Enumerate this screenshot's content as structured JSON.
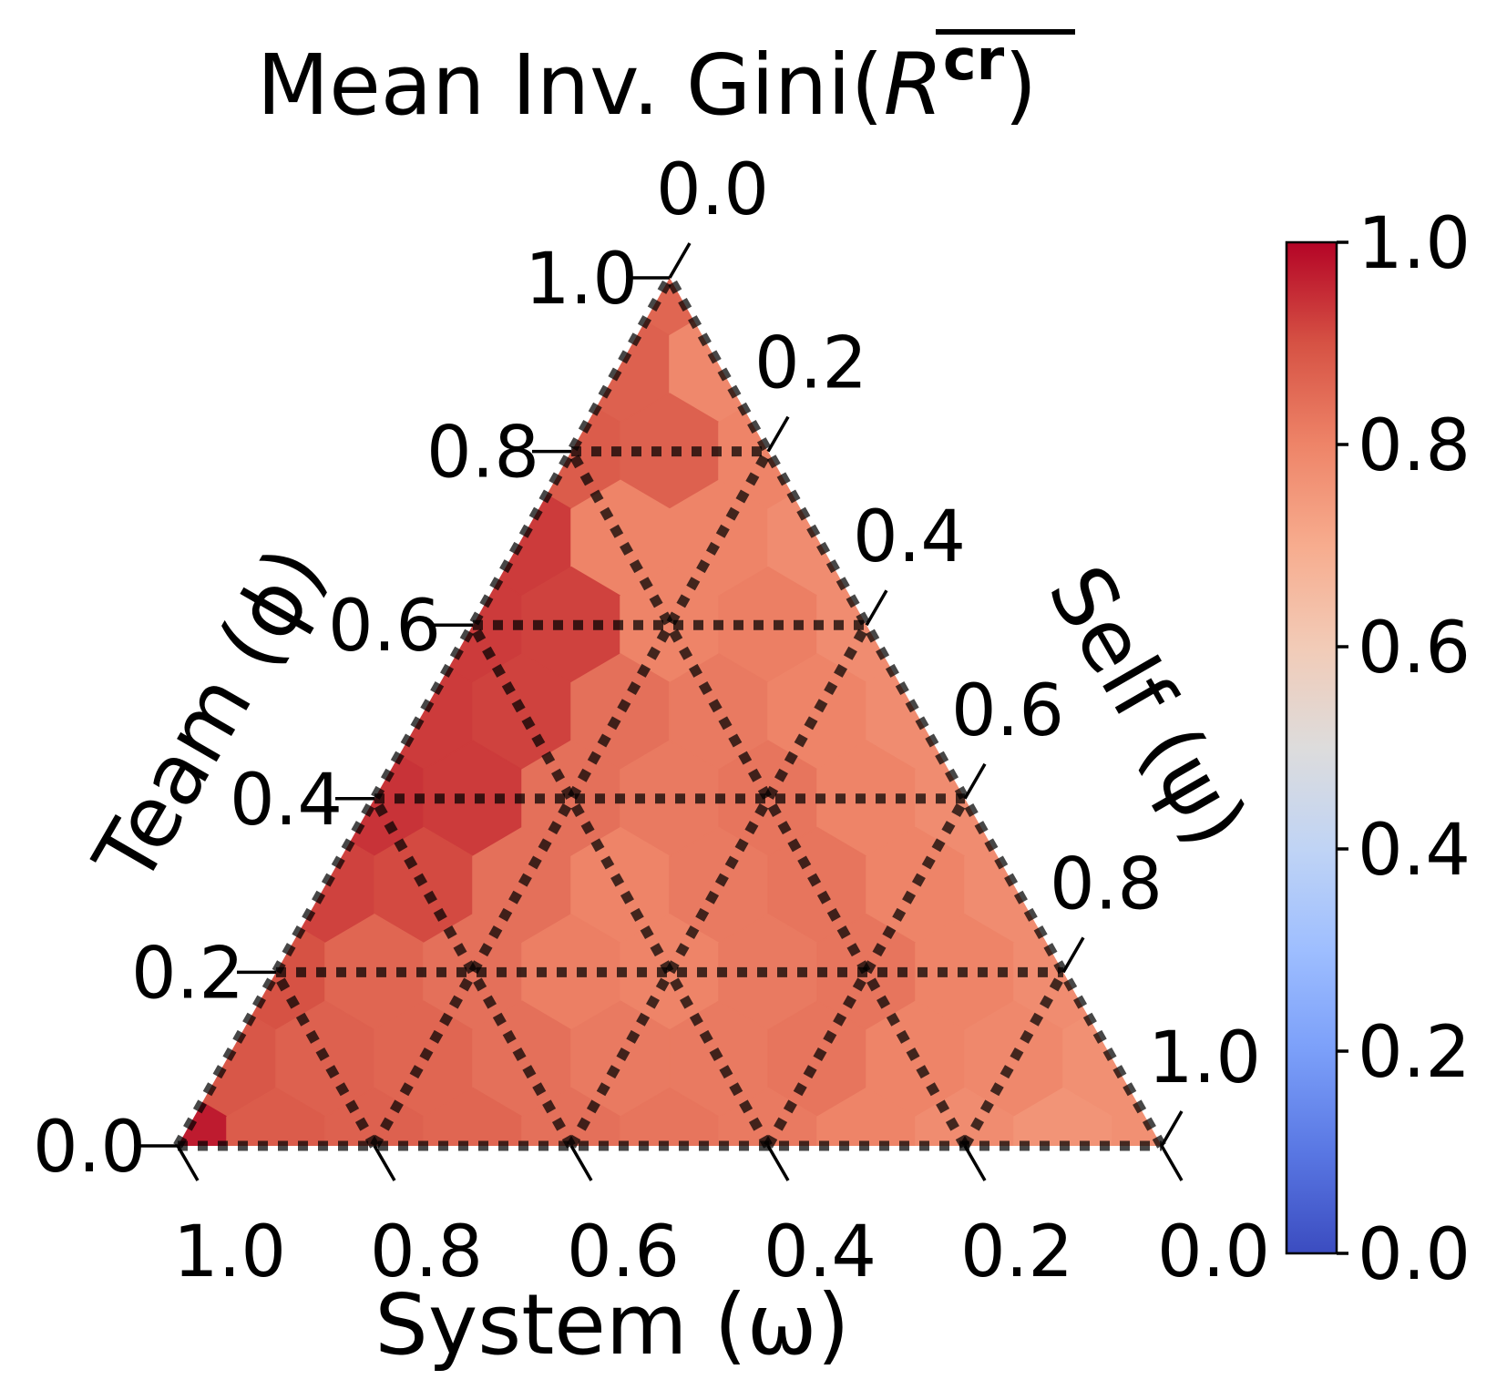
{
  "chart_data": {
    "type": "heatmap",
    "subtype": "ternary",
    "title": {
      "prefix": "Mean Inv. Gini(",
      "symbol": "R",
      "superscript": "cr",
      "overline": true,
      "suffix": ")"
    },
    "axes": {
      "bottom": {
        "label": "System (ω)",
        "ticks": [
          "1.0",
          "0.8",
          "0.6",
          "0.4",
          "0.2",
          "0.0"
        ]
      },
      "left": {
        "label": "Team (ϕ)",
        "ticks": [
          "0.0",
          "0.2",
          "0.4",
          "0.6",
          "0.8",
          "1.0"
        ]
      },
      "right": {
        "label": "Self (ψ)",
        "ticks": [
          "0.0",
          "0.2",
          "0.4",
          "0.6",
          "0.8",
          "1.0"
        ]
      }
    },
    "grid": "dotted",
    "grid_step": 0.2,
    "resolution": 0.1,
    "colormap": "coolwarm",
    "colorbar": {
      "range": [
        0,
        1
      ],
      "ticks": [
        "0.0",
        "0.2",
        "0.4",
        "0.6",
        "0.8",
        "1.0"
      ],
      "position": "right"
    },
    "columns": [
      "team",
      "self",
      "system",
      "value"
    ],
    "cells": [
      [
        1.0,
        0.0,
        0.0,
        0.86
      ],
      [
        0.9,
        0.0,
        0.1,
        0.87
      ],
      [
        0.9,
        0.1,
        0.0,
        0.79
      ],
      [
        0.8,
        0.0,
        0.2,
        0.88
      ],
      [
        0.8,
        0.1,
        0.1,
        0.87
      ],
      [
        0.8,
        0.2,
        0.0,
        0.8
      ],
      [
        0.7,
        0.0,
        0.3,
        0.93
      ],
      [
        0.7,
        0.1,
        0.2,
        0.8
      ],
      [
        0.7,
        0.2,
        0.1,
        0.8
      ],
      [
        0.7,
        0.3,
        0.0,
        0.78
      ],
      [
        0.6,
        0.0,
        0.4,
        0.93
      ],
      [
        0.6,
        0.1,
        0.3,
        0.92
      ],
      [
        0.6,
        0.2,
        0.2,
        0.8
      ],
      [
        0.6,
        0.3,
        0.1,
        0.81
      ],
      [
        0.6,
        0.4,
        0.0,
        0.78
      ],
      [
        0.5,
        0.0,
        0.5,
        0.93
      ],
      [
        0.5,
        0.1,
        0.4,
        0.92
      ],
      [
        0.5,
        0.2,
        0.3,
        0.84
      ],
      [
        0.5,
        0.3,
        0.2,
        0.82
      ],
      [
        0.5,
        0.4,
        0.1,
        0.8
      ],
      [
        0.5,
        0.5,
        0.0,
        0.78
      ],
      [
        0.4,
        0.0,
        0.6,
        0.94
      ],
      [
        0.4,
        0.1,
        0.5,
        0.93
      ],
      [
        0.4,
        0.2,
        0.4,
        0.84
      ],
      [
        0.4,
        0.3,
        0.3,
        0.82
      ],
      [
        0.4,
        0.4,
        0.2,
        0.83
      ],
      [
        0.4,
        0.5,
        0.1,
        0.8
      ],
      [
        0.4,
        0.6,
        0.0,
        0.78
      ],
      [
        0.3,
        0.0,
        0.7,
        0.92
      ],
      [
        0.3,
        0.1,
        0.6,
        0.91
      ],
      [
        0.3,
        0.2,
        0.5,
        0.84
      ],
      [
        0.3,
        0.3,
        0.4,
        0.8
      ],
      [
        0.3,
        0.4,
        0.3,
        0.82
      ],
      [
        0.3,
        0.5,
        0.2,
        0.83
      ],
      [
        0.3,
        0.6,
        0.1,
        0.8
      ],
      [
        0.3,
        0.7,
        0.0,
        0.78
      ],
      [
        0.2,
        0.0,
        0.8,
        0.9
      ],
      [
        0.2,
        0.1,
        0.7,
        0.86
      ],
      [
        0.2,
        0.2,
        0.6,
        0.84
      ],
      [
        0.2,
        0.3,
        0.5,
        0.81
      ],
      [
        0.2,
        0.4,
        0.4,
        0.8
      ],
      [
        0.2,
        0.5,
        0.3,
        0.82
      ],
      [
        0.2,
        0.6,
        0.2,
        0.83
      ],
      [
        0.2,
        0.7,
        0.1,
        0.8
      ],
      [
        0.2,
        0.8,
        0.0,
        0.78
      ],
      [
        0.1,
        0.0,
        0.9,
        0.89
      ],
      [
        0.1,
        0.1,
        0.8,
        0.87
      ],
      [
        0.1,
        0.2,
        0.7,
        0.86
      ],
      [
        0.1,
        0.3,
        0.6,
        0.84
      ],
      [
        0.1,
        0.4,
        0.5,
        0.82
      ],
      [
        0.1,
        0.5,
        0.4,
        0.82
      ],
      [
        0.1,
        0.6,
        0.3,
        0.83
      ],
      [
        0.1,
        0.7,
        0.2,
        0.8
      ],
      [
        0.1,
        0.8,
        0.1,
        0.79
      ],
      [
        0.1,
        0.9,
        0.0,
        0.77
      ],
      [
        0.0,
        0.0,
        1.0,
        0.97
      ],
      [
        0.0,
        0.1,
        0.9,
        0.88
      ],
      [
        0.0,
        0.2,
        0.8,
        0.87
      ],
      [
        0.0,
        0.3,
        0.7,
        0.86
      ],
      [
        0.0,
        0.4,
        0.6,
        0.84
      ],
      [
        0.0,
        0.5,
        0.5,
        0.83
      ],
      [
        0.0,
        0.6,
        0.4,
        0.82
      ],
      [
        0.0,
        0.7,
        0.3,
        0.8
      ],
      [
        0.0,
        0.8,
        0.2,
        0.78
      ],
      [
        0.0,
        0.9,
        0.1,
        0.76
      ],
      [
        0.0,
        1.0,
        0.0,
        0.77
      ]
    ]
  }
}
